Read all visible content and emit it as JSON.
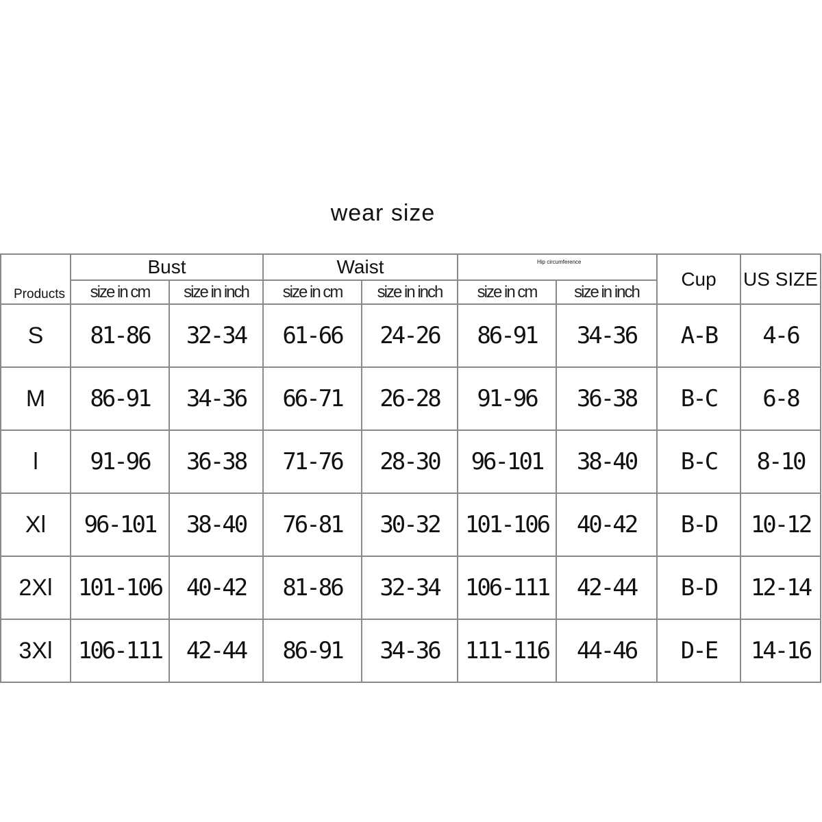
{
  "title": "wear size",
  "headers": {
    "products": "Products",
    "bust": "Bust",
    "waist": "Waist",
    "hip": "Hip circumference",
    "cup": "Cup",
    "us_size": "US SIZE",
    "size_cm": "size in cm",
    "size_inch": "size in inch"
  },
  "rows": [
    [
      "S",
      "81-86",
      "32-34",
      "61-66",
      "24-26",
      "86-91",
      "34-36",
      "A-B",
      "4-6"
    ],
    [
      "M",
      "86-91",
      "34-36",
      "66-71",
      "26-28",
      "91-96",
      "36-38",
      "B-C",
      "6-8"
    ],
    [
      "l",
      "91-96",
      "36-38",
      "71-76",
      "28-30",
      "96-101",
      "38-40",
      "B-C",
      "8-10"
    ],
    [
      "Xl",
      "96-101",
      "38-40",
      "76-81",
      "30-32",
      "101-106",
      "40-42",
      "B-D",
      "10-12"
    ],
    [
      "2Xl",
      "101-106",
      "40-42",
      "81-86",
      "32-34",
      "106-111",
      "42-44",
      "B-D",
      "12-14"
    ],
    [
      "3Xl",
      "106-111",
      "42-44",
      "86-91",
      "34-36",
      "111-116",
      "44-46",
      "D-E",
      "14-16"
    ]
  ]
}
